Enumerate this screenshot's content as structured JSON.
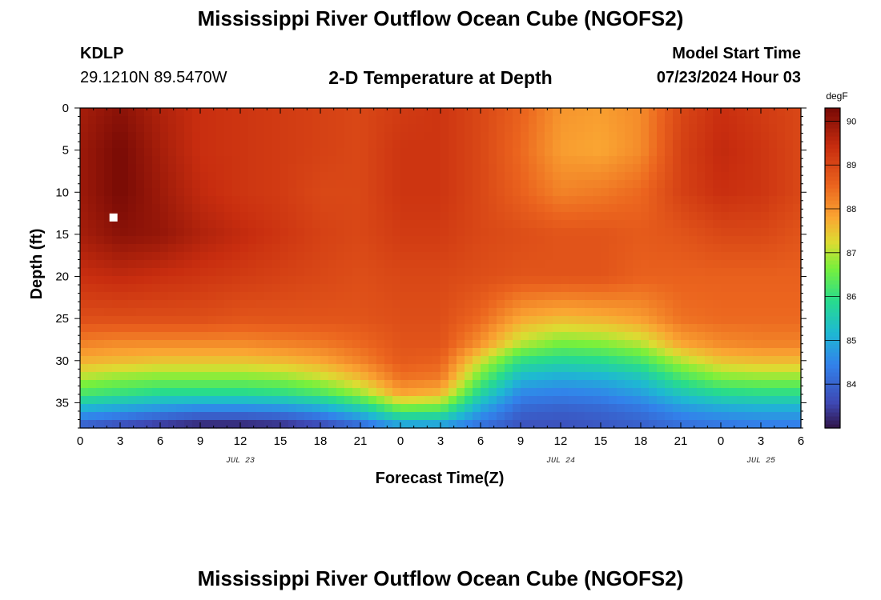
{
  "header": {
    "title": "Mississippi River Outflow Ocean Cube (NGOFS2)",
    "station": "KDLP",
    "coords": "29.1210N  89.5470W",
    "subtitle": "2-D Temperature at Depth",
    "model_start_label": "Model Start Time",
    "model_start_value": "07/23/2024 Hour 03"
  },
  "footer": {
    "title": "Mississippi River Outflow Ocean Cube (NGOFS2)"
  },
  "chart_data": {
    "type": "heatmap",
    "title": "2-D Temperature at Depth",
    "xlabel": "Forecast Time(Z)",
    "ylabel": "Depth (ft)",
    "x_range_hours": [
      0,
      54
    ],
    "y_range_ft": [
      0,
      38
    ],
    "x_ticks": [
      {
        "hour": 0,
        "label": "0"
      },
      {
        "hour": 3,
        "label": "3"
      },
      {
        "hour": 6,
        "label": "6"
      },
      {
        "hour": 9,
        "label": "9"
      },
      {
        "hour": 12,
        "label": "12"
      },
      {
        "hour": 15,
        "label": "15"
      },
      {
        "hour": 18,
        "label": "18"
      },
      {
        "hour": 21,
        "label": "21"
      },
      {
        "hour": 24,
        "label": "0"
      },
      {
        "hour": 27,
        "label": "3"
      },
      {
        "hour": 30,
        "label": "6"
      },
      {
        "hour": 33,
        "label": "9"
      },
      {
        "hour": 36,
        "label": "12"
      },
      {
        "hour": 39,
        "label": "15"
      },
      {
        "hour": 42,
        "label": "18"
      },
      {
        "hour": 45,
        "label": "21"
      },
      {
        "hour": 48,
        "label": "0"
      },
      {
        "hour": 51,
        "label": "3"
      },
      {
        "hour": 54,
        "label": "6"
      }
    ],
    "day_labels": [
      {
        "hour": 12,
        "label": "JUL 23"
      },
      {
        "hour": 36,
        "label": "JUL 24"
      },
      {
        "hour": 51,
        "label": "JUL 25"
      }
    ],
    "y_ticks": [
      0,
      5,
      10,
      15,
      20,
      25,
      30,
      35
    ],
    "colorbar": {
      "unit": "degF",
      "min": 83.0,
      "max": 90.3,
      "ticks": [
        84,
        85,
        86,
        87,
        88,
        89,
        90
      ]
    },
    "marker": {
      "hour": 2.5,
      "depth_ft": 13
    },
    "samples": {
      "depths_ft": [
        0,
        5,
        10,
        15,
        20,
        25,
        28,
        30,
        32,
        34,
        36,
        38
      ],
      "hours": [
        0,
        3,
        6,
        9,
        12,
        15,
        18,
        21,
        24,
        27,
        30,
        33,
        36,
        39,
        42,
        45,
        48,
        51,
        54
      ],
      "grid_degF": [
        [
          89.8,
          90.1,
          89.7,
          89.4,
          89.3,
          89.2,
          89.1,
          89.0,
          89.2,
          89.3,
          89.0,
          88.6,
          88.0,
          87.9,
          88.1,
          89.0,
          89.4,
          89.2,
          89.0
        ],
        [
          89.9,
          90.3,
          89.8,
          89.4,
          89.3,
          89.2,
          89.1,
          89.0,
          89.3,
          89.3,
          89.0,
          88.5,
          87.9,
          87.8,
          88.1,
          89.1,
          89.5,
          89.3,
          89.0
        ],
        [
          89.9,
          90.3,
          89.9,
          89.5,
          89.3,
          89.2,
          89.0,
          89.0,
          89.3,
          89.3,
          89.0,
          88.6,
          88.2,
          88.3,
          88.5,
          89.1,
          89.4,
          89.3,
          89.0
        ],
        [
          89.8,
          90.1,
          90.0,
          89.7,
          89.5,
          89.3,
          89.1,
          89.0,
          89.2,
          89.2,
          89.0,
          88.9,
          88.8,
          88.8,
          88.7,
          88.8,
          89.0,
          89.0,
          88.8
        ],
        [
          89.4,
          89.5,
          89.4,
          89.3,
          89.2,
          89.1,
          89.0,
          88.9,
          89.0,
          89.0,
          88.9,
          88.8,
          88.8,
          88.8,
          88.6,
          88.6,
          88.6,
          88.6,
          88.6
        ],
        [
          88.9,
          88.9,
          88.9,
          88.9,
          88.8,
          88.8,
          88.8,
          88.8,
          88.9,
          88.9,
          88.5,
          87.8,
          87.6,
          87.7,
          87.9,
          88.4,
          88.5,
          88.5,
          88.5
        ],
        [
          88.2,
          88.1,
          88.1,
          88.1,
          88.1,
          88.2,
          88.3,
          88.5,
          88.8,
          88.8,
          88.0,
          87.0,
          86.6,
          86.7,
          87.0,
          87.8,
          88.1,
          88.2,
          88.2
        ],
        [
          87.7,
          87.6,
          87.5,
          87.5,
          87.5,
          87.6,
          87.8,
          88.2,
          88.7,
          88.6,
          87.2,
          86.0,
          85.8,
          85.9,
          86.2,
          87.0,
          87.5,
          87.6,
          87.6
        ],
        [
          87.0,
          86.8,
          86.7,
          86.7,
          86.7,
          86.8,
          87.1,
          87.6,
          88.4,
          88.3,
          86.5,
          85.2,
          85.0,
          85.1,
          85.4,
          86.2,
          86.7,
          86.8,
          86.8
        ],
        [
          86.2,
          86.0,
          85.8,
          85.8,
          85.8,
          85.9,
          86.2,
          86.8,
          87.8,
          87.6,
          85.7,
          84.5,
          84.4,
          84.5,
          84.8,
          85.4,
          85.8,
          85.9,
          85.9
        ],
        [
          84.9,
          84.7,
          84.5,
          84.3,
          84.3,
          84.4,
          84.7,
          85.3,
          86.3,
          86.2,
          84.8,
          84.0,
          83.9,
          84.0,
          84.2,
          84.6,
          84.8,
          84.9,
          84.9
        ],
        [
          83.8,
          83.5,
          83.2,
          83.0,
          83.0,
          83.1,
          83.4,
          83.9,
          84.6,
          84.6,
          84.1,
          83.7,
          83.7,
          83.8,
          83.9,
          84.1,
          84.2,
          84.3,
          84.3
        ]
      ]
    }
  }
}
